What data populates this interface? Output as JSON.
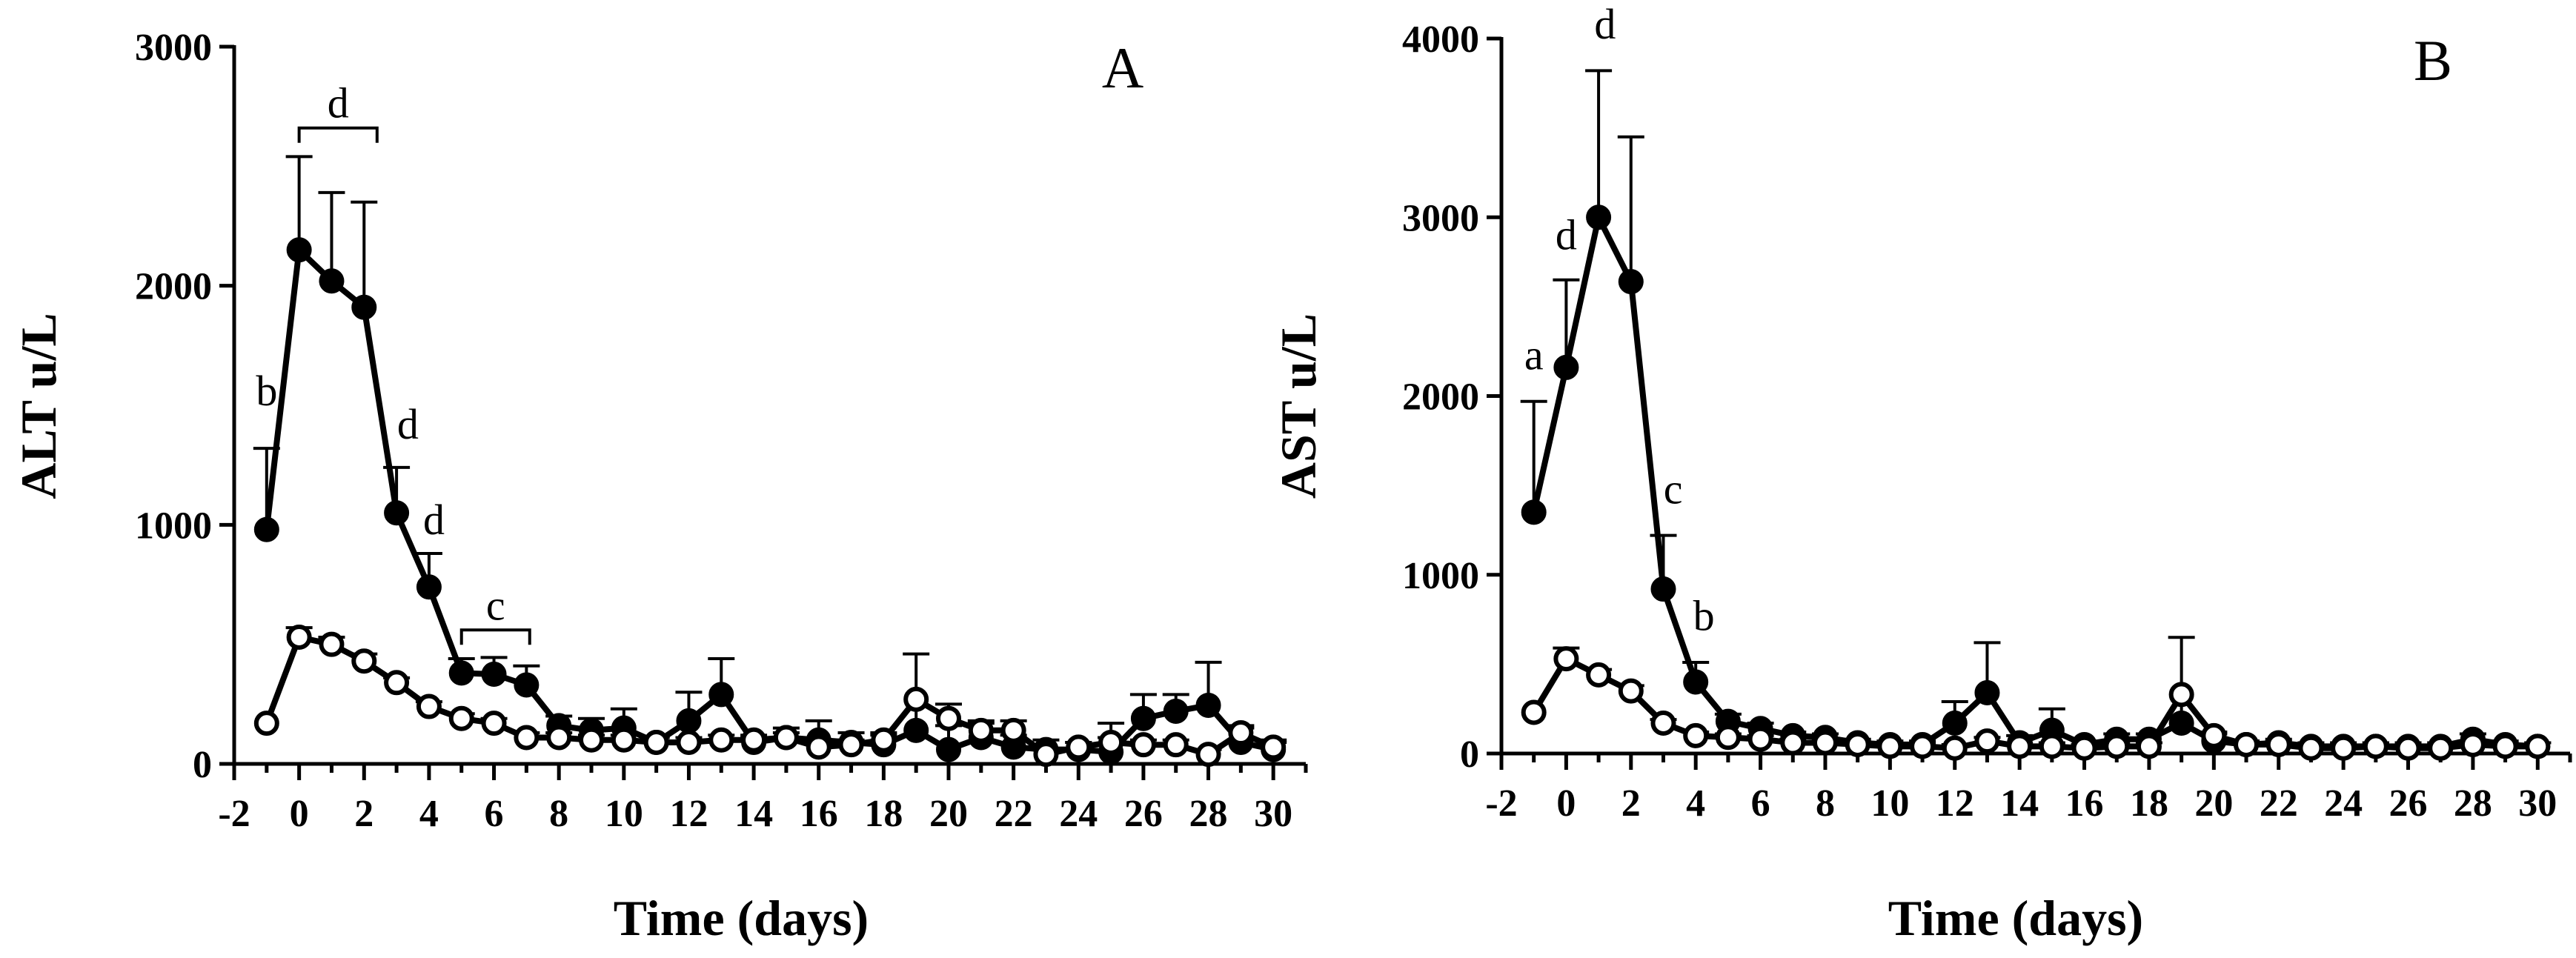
{
  "chart_data": [
    {
      "type": "line",
      "panel_label": "A",
      "xlabel": "Time (days)",
      "ylabel": "ALT u/L",
      "xlim": [
        -2,
        31
      ],
      "ylim": [
        0,
        3000
      ],
      "x_ticks": [
        -2,
        0,
        2,
        4,
        6,
        8,
        10,
        12,
        14,
        16,
        18,
        20,
        22,
        24,
        26,
        28,
        30
      ],
      "y_ticks": [
        0,
        1000,
        2000,
        3000
      ],
      "grid": false,
      "x": [
        -1,
        0,
        1,
        2,
        3,
        4,
        5,
        6,
        7,
        8,
        9,
        10,
        11,
        12,
        13,
        14,
        15,
        16,
        17,
        18,
        19,
        20,
        21,
        22,
        23,
        24,
        25,
        26,
        27,
        28,
        29,
        30
      ],
      "series": [
        {
          "marker": "filled-circle",
          "values": [
            980,
            2150,
            2020,
            1910,
            1050,
            740,
            380,
            375,
            330,
            160,
            140,
            150,
            90,
            180,
            290,
            90,
            110,
            100,
            90,
            80,
            140,
            60,
            110,
            70,
            60,
            60,
            50,
            190,
            220,
            245,
            90,
            60
          ],
          "errors": [
            340,
            390,
            370,
            440,
            190,
            140,
            60,
            70,
            80,
            40,
            50,
            80,
            20,
            120,
            150,
            20,
            40,
            80,
            40,
            50,
            320,
            100,
            60,
            50,
            40,
            30,
            120,
            100,
            70,
            180,
            60,
            40
          ]
        },
        {
          "marker": "open-circle",
          "values": [
            170,
            530,
            500,
            430,
            340,
            240,
            190,
            170,
            110,
            110,
            100,
            100,
            90,
            90,
            100,
            100,
            110,
            70,
            80,
            100,
            270,
            190,
            140,
            140,
            40,
            70,
            90,
            80,
            80,
            40,
            130,
            70
          ],
          "errors": [
            0,
            40,
            30,
            30,
            20,
            20,
            20,
            20,
            20,
            20,
            20,
            20,
            20,
            20,
            20,
            20,
            20,
            20,
            20,
            20,
            0,
            60,
            40,
            40,
            20,
            20,
            20,
            20,
            20,
            20,
            30,
            20
          ]
        }
      ],
      "annotations": [
        {
          "text": "b",
          "x": -1,
          "y": 1500
        },
        {
          "text": "d",
          "x": 3.35,
          "y": 1360
        },
        {
          "text": "d",
          "x": 4.15,
          "y": 960
        }
      ],
      "brackets": [
        {
          "text": "d",
          "x_start": 0,
          "x_end": 2.4,
          "y": 2660
        },
        {
          "text": "c",
          "x_start": 5,
          "x_end": 7.1,
          "y": 560
        }
      ]
    },
    {
      "type": "line",
      "panel_label": "B",
      "xlabel": "Time (days)",
      "ylabel": "AST u/L",
      "xlim": [
        -2,
        31
      ],
      "ylim": [
        0,
        4000
      ],
      "x_ticks": [
        -2,
        0,
        2,
        4,
        6,
        8,
        10,
        12,
        14,
        16,
        18,
        20,
        22,
        24,
        26,
        28,
        30
      ],
      "y_ticks": [
        0,
        1000,
        2000,
        3000,
        4000
      ],
      "grid": false,
      "x": [
        -1,
        0,
        1,
        2,
        3,
        4,
        5,
        6,
        7,
        8,
        9,
        10,
        11,
        12,
        13,
        14,
        15,
        16,
        17,
        18,
        19,
        20,
        21,
        22,
        23,
        24,
        25,
        26,
        27,
        28,
        29,
        30
      ],
      "series": [
        {
          "marker": "filled-circle",
          "values": [
            1350,
            2160,
            3000,
            2640,
            920,
            400,
            180,
            140,
            100,
            90,
            60,
            50,
            50,
            170,
            340,
            60,
            130,
            50,
            80,
            80,
            170,
            70,
            50,
            60,
            40,
            40,
            40,
            40,
            40,
            80,
            50,
            40
          ],
          "errors": [
            620,
            490,
            820,
            810,
            300,
            110,
            40,
            30,
            20,
            20,
            20,
            20,
            20,
            120,
            280,
            40,
            120,
            20,
            30,
            30,
            480,
            40,
            20,
            20,
            20,
            20,
            20,
            20,
            20,
            30,
            20,
            20
          ]
        },
        {
          "marker": "open-circle",
          "values": [
            230,
            530,
            440,
            350,
            170,
            100,
            90,
            80,
            60,
            60,
            50,
            40,
            40,
            30,
            70,
            40,
            40,
            30,
            40,
            40,
            330,
            100,
            50,
            50,
            30,
            30,
            40,
            30,
            30,
            50,
            40,
            40
          ],
          "errors": [
            0,
            60,
            30,
            30,
            20,
            20,
            20,
            20,
            20,
            20,
            20,
            20,
            20,
            20,
            20,
            20,
            20,
            20,
            20,
            20,
            0,
            20,
            20,
            20,
            20,
            20,
            20,
            20,
            20,
            20,
            20,
            20
          ]
        }
      ],
      "annotations": [
        {
          "text": "a",
          "x": -1,
          "y": 2150
        },
        {
          "text": "d",
          "x": 0,
          "y": 2820
        },
        {
          "text": "d",
          "x": 1.2,
          "y": 4000
        },
        {
          "text": "c",
          "x": 3.3,
          "y": 1400
        },
        {
          "text": "b",
          "x": 4.25,
          "y": 690
        }
      ],
      "brackets": []
    }
  ]
}
